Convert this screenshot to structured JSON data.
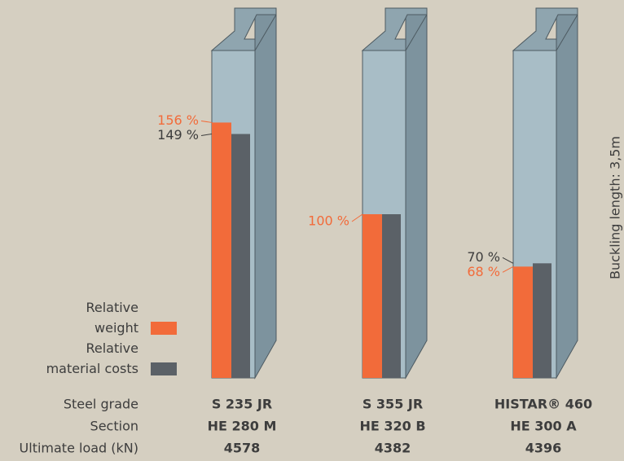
{
  "chart_data": {
    "type": "bar",
    "category_label": "Steel grade",
    "categories": [
      "S 235 JR",
      "S 355 JR",
      "HISTAR® 460"
    ],
    "series": [
      {
        "name": "Relative weight",
        "color": "#f26b3a",
        "values": [
          156,
          100,
          68
        ],
        "value_labels": [
          "156 %",
          "100 %",
          "68 %"
        ]
      },
      {
        "name": "Relative material costs",
        "color": "#5b6167",
        "values": [
          149,
          100,
          70
        ],
        "value_labels": [
          "149 %",
          null,
          "70 %"
        ]
      }
    ],
    "rows": [
      {
        "label": "Section",
        "values": [
          "HE 280 M",
          "HE 320 B",
          "HE 300 A"
        ]
      },
      {
        "label": "Ultimate load (kN)",
        "values": [
          4578,
          4382,
          4396
        ]
      }
    ],
    "annotation": "Buckling length: 3,5m"
  }
}
